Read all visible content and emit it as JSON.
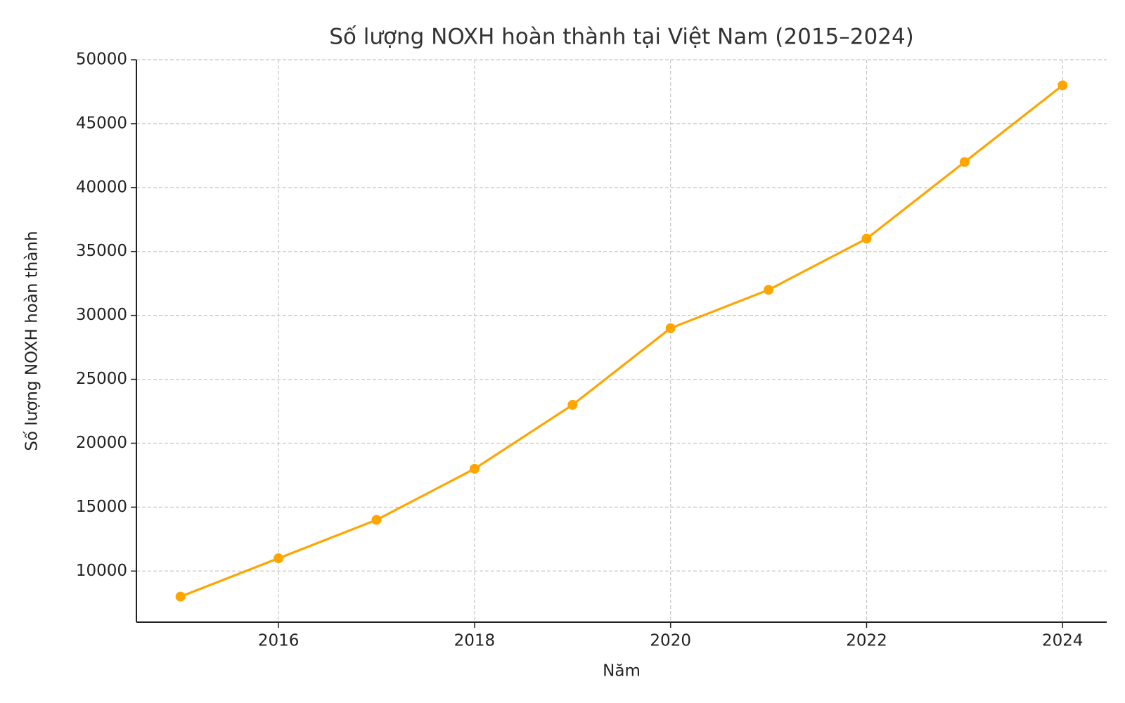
{
  "chart_data": {
    "type": "line",
    "title": "Số lượng NOXH hoàn thành tại Việt Nam (2015–2024)",
    "x_label": "Năm",
    "y_label": "Số lượng NOXH hoàn thành",
    "x": [
      2015,
      2016,
      2017,
      2018,
      2019,
      2020,
      2021,
      2022,
      2023,
      2024
    ],
    "series": [
      {
        "name": "Số lượng NOXH hoàn thành",
        "color": "#ffa500",
        "values": [
          8000,
          11000,
          14000,
          18000,
          23000,
          29000,
          32000,
          36000,
          42000,
          48000
        ]
      }
    ],
    "xlim": [
      2014.55,
      2024.45
    ],
    "xticks": [
      2016,
      2018,
      2020,
      2022,
      2024
    ],
    "ylim": [
      6000,
      50000
    ],
    "yticks": [
      10000,
      15000,
      20000,
      25000,
      30000,
      35000,
      40000,
      45000,
      50000
    ],
    "grid": true
  }
}
